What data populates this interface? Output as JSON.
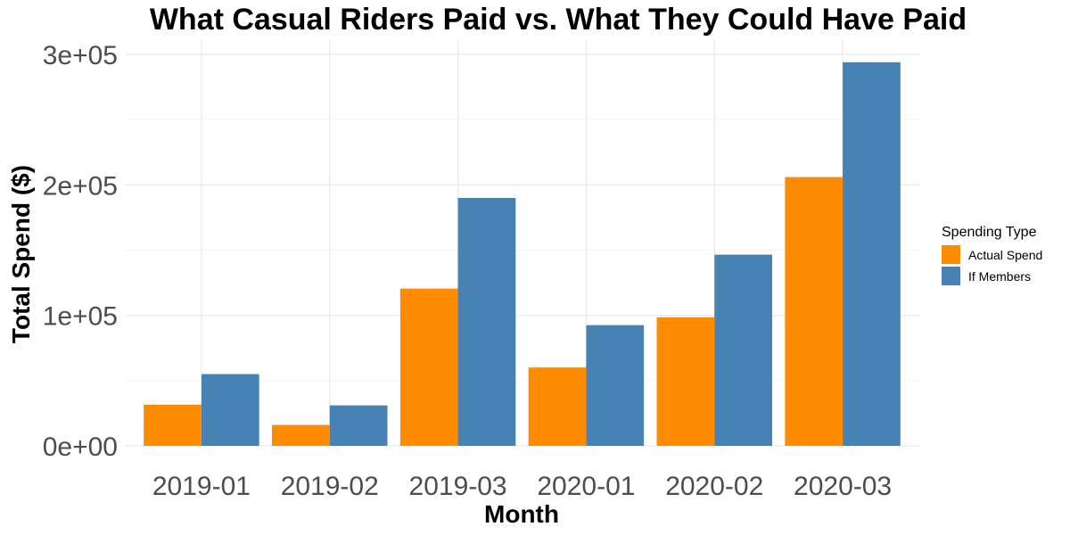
{
  "chart_data": {
    "type": "bar",
    "title": "What Casual Riders Paid vs. What They Could Have Paid",
    "xlabel": "Month",
    "ylabel": "Total Spend ($)",
    "categories": [
      "2019-01",
      "2019-02",
      "2019-03",
      "2020-01",
      "2020-02",
      "2020-03"
    ],
    "series": [
      {
        "name": "Actual Spend",
        "color": "#FF8C00",
        "values": [
          31500,
          16000,
          120500,
          60000,
          98500,
          206000
        ]
      },
      {
        "name": "If Members",
        "color": "#4682B4",
        "values": [
          55000,
          31000,
          190000,
          92500,
          146500,
          294000
        ]
      }
    ],
    "ylim": [
      0,
      300000
    ],
    "yticks": [
      0,
      100000,
      200000,
      300000
    ],
    "ytick_labels": [
      "0e+00",
      "1e+05",
      "2e+05",
      "3e+05"
    ],
    "legend": {
      "title": "Spending Type",
      "position": "right"
    },
    "grid": true
  }
}
